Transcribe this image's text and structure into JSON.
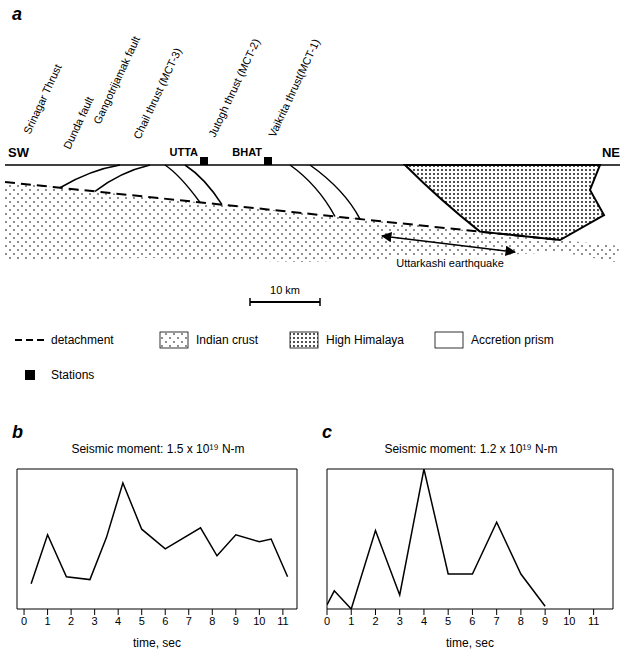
{
  "diagram": {
    "label": "a",
    "left": "SW",
    "right": "NE",
    "faults": [
      "Srinagar Thrust",
      "Dunda fault",
      "Gangotrijamak fault",
      "Chail thrust (MCT-3)",
      "Jutogh thrust (MCT-2)",
      "Vaikrita thrust(MCT-1)"
    ],
    "stations": [
      "UTTA",
      "BHAT"
    ],
    "event": "Uttarkashi earthquake",
    "scale": "10 km",
    "legend": [
      {
        "label": "detachment"
      },
      {
        "label": "Indian crust"
      },
      {
        "label": "High Himalaya"
      },
      {
        "label": "Accretion prism"
      },
      {
        "label": "Stations"
      }
    ]
  },
  "chart_data": [
    {
      "label": "b",
      "type": "line",
      "title": "Seismic moment: 1.5 x 10¹⁹ N-m",
      "x_label": "time, sec",
      "x": [
        0.3,
        1,
        1.8,
        2.8,
        3.5,
        4.2,
        5,
        6,
        7.5,
        8.2,
        9,
        10,
        10.5,
        11.2
      ],
      "values": [
        0.18,
        0.53,
        0.23,
        0.21,
        0.51,
        0.9,
        0.57,
        0.43,
        0.58,
        0.38,
        0.53,
        0.48,
        0.5,
        0.23
      ],
      "color": "#000000",
      "xlim": [
        -0.3,
        11.6
      ],
      "xticks": [
        0,
        1,
        2,
        3,
        4,
        5,
        6,
        7,
        8,
        9,
        10,
        11
      ],
      "ylim": [
        0,
        1
      ],
      "tick_labels": "x"
    },
    {
      "label": "c",
      "type": "line",
      "title": "Seismic moment: 1.2 x 10¹⁹ N-m",
      "x_label": "time, sec",
      "x": [
        0,
        0.3,
        1,
        2,
        3,
        4,
        5,
        6,
        7,
        8,
        9
      ],
      "values": [
        0.03,
        0.13,
        0,
        0.56,
        0.1,
        1.0,
        0.25,
        0.25,
        0.62,
        0.25,
        0.02
      ],
      "color": "#000000",
      "xlim": [
        0,
        11.8
      ],
      "xticks": [
        0,
        1,
        2,
        3,
        4,
        5,
        6,
        7,
        8,
        9,
        10,
        11
      ],
      "ylim": [
        0,
        1
      ],
      "tick_labels": "x"
    }
  ]
}
